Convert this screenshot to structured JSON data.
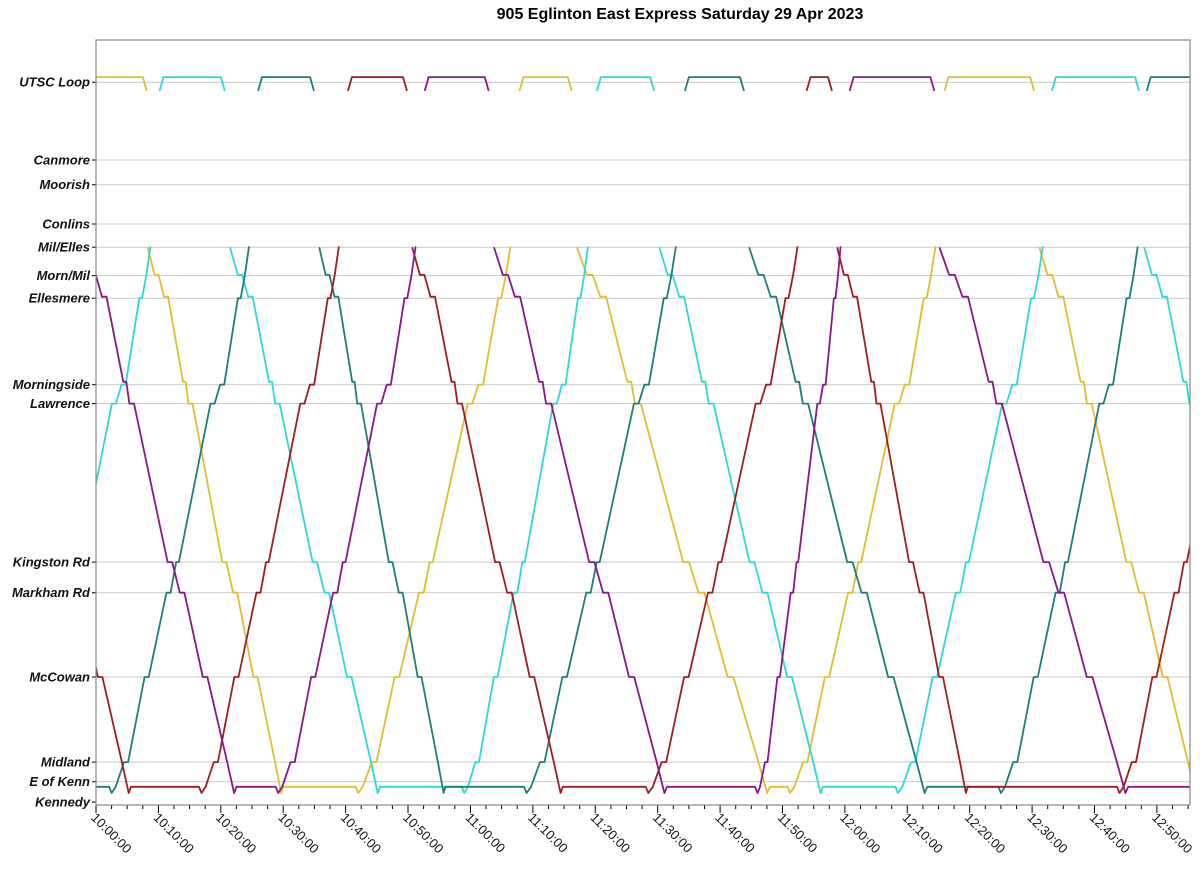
{
  "title": "905 Eglinton East Express Saturday 29 Apr 2023",
  "chart_data": {
    "type": "line",
    "title": "905 Eglinton East Express Saturday 29 Apr 2023",
    "xlabel": "",
    "ylabel": "",
    "legend": "none",
    "grid": "horizontal-station-lines",
    "x_axis": {
      "unit": "time",
      "start_min": 0,
      "end_min": 175.3,
      "major_tick_min": 10,
      "minor_tick_min": 2.5,
      "labels": [
        "10:00:00",
        "10:10:00",
        "10:20:00",
        "10:30:00",
        "10:40:00",
        "10:50:00",
        "11:00:00",
        "11:10:00",
        "11:20:00",
        "11:30:00",
        "11:40:00",
        "11:50:00",
        "12:00:00",
        "12:10:00",
        "12:20:00",
        "12:30:00",
        "12:40:00",
        "12:50:00"
      ]
    },
    "y_axis": {
      "unit": "route-position-0-to-100",
      "range": [
        0,
        105.2
      ],
      "stations": [
        {
          "label": "UTSC Loop",
          "pos": 99.4,
          "gridline": true
        },
        {
          "label": "Canmore",
          "pos": 88.7,
          "gridline": true
        },
        {
          "label": "Moorish",
          "pos": 85.3,
          "gridline": true
        },
        {
          "label": "Conlins",
          "pos": 79.9,
          "gridline": true
        },
        {
          "label": "Mil/Elles",
          "pos": 76.7,
          "gridline": true
        },
        {
          "label": "Morn/Mil",
          "pos": 72.8,
          "gridline": true
        },
        {
          "label": "Ellesmere",
          "pos": 69.7,
          "gridline": true
        },
        {
          "label": "Morningside",
          "pos": 57.8,
          "gridline": true
        },
        {
          "label": "Lawrence",
          "pos": 55.2,
          "gridline": true
        },
        {
          "label": "Kingston Rd",
          "pos": 33.4,
          "gridline": true
        },
        {
          "label": "Markham Rd",
          "pos": 29.2,
          "gridline": true
        },
        {
          "label": "McCowan",
          "pos": 17.6,
          "gridline": true
        },
        {
          "label": "Midland",
          "pos": 5.9,
          "gridline": true
        },
        {
          "label": "E of Kenn",
          "pos": 3.2,
          "gridline": true
        },
        {
          "label": "Kennedy",
          "pos": 0.4,
          "gridline": false
        }
      ]
    },
    "special_positions": {
      "loop_flat": 100.1,
      "loop_tick": 98.3,
      "terminal_flat": 2.5,
      "terminal_dip": 1.65
    },
    "profiles": {
      "descent": [
        [
          0,
          76.6
        ],
        [
          0.05,
          72.9
        ],
        [
          0.08,
          72.9
        ],
        [
          0.12,
          69.9
        ],
        [
          0.15,
          69.9
        ],
        [
          0.26,
          58.2
        ],
        [
          0.28,
          58.2
        ],
        [
          0.3,
          55.2
        ],
        [
          0.33,
          55.2
        ],
        [
          0.55,
          33.4
        ],
        [
          0.58,
          33.4
        ],
        [
          0.63,
          29.2
        ],
        [
          0.66,
          29.2
        ],
        [
          0.78,
          17.6
        ],
        [
          0.81,
          17.6
        ],
        [
          0.94,
          5.9
        ],
        [
          0.985,
          1.65
        ],
        [
          1,
          2.5
        ]
      ],
      "ascent": [
        [
          0,
          1.65
        ],
        [
          0.03,
          2.5
        ],
        [
          0.09,
          5.9
        ],
        [
          0.12,
          5.9
        ],
        [
          0.24,
          17.6
        ],
        [
          0.27,
          17.6
        ],
        [
          0.4,
          29.2
        ],
        [
          0.43,
          29.2
        ],
        [
          0.47,
          33.4
        ],
        [
          0.49,
          33.4
        ],
        [
          0.72,
          55.2
        ],
        [
          0.75,
          55.2
        ],
        [
          0.79,
          57.8
        ],
        [
          0.82,
          57.8
        ],
        [
          0.92,
          69.7
        ],
        [
          0.94,
          69.7
        ],
        [
          0.97,
          72.8
        ],
        [
          1,
          76.7
        ]
      ]
    },
    "series": [
      {
        "name": "gold",
        "color": "#E0BE33",
        "loops": [
          {
            "arr": -2,
            "dep": 7.5
          },
          {
            "arr": 67.9,
            "dep": 75.6
          },
          {
            "arr": 136,
            "dep": 149.7
          }
        ],
        "runs": [
          {
            "desc": [
              8.3,
              30
            ],
            "asc": [
              42,
              66.4
            ]
          },
          {
            "desc": [
              77.1,
              108
            ],
            "asc": [
              111.2,
              134.5
            ]
          },
          {
            "desc": [
              151.2,
              176.5
            ]
          }
        ]
      },
      {
        "name": "cyan",
        "color": "#2FD8D8",
        "loops": [
          {
            "arr": 10.2,
            "dep": 20
          },
          {
            "arr": 80.3,
            "dep": 88.8
          },
          {
            "arr": 153.2,
            "dep": 166.5
          }
        ],
        "runs": [
          {
            "asc": [
              -13.3,
              8.7
            ]
          },
          {
            "desc": [
              21.5,
              45.5
            ],
            "asc": [
              59,
              78.8
            ]
          },
          {
            "desc": [
              90.3,
              116.5
            ],
            "asc": [
              128.5,
              151.7
            ]
          },
          {
            "desc": [
              168,
              192
            ]
          }
        ]
      },
      {
        "name": "teal",
        "color": "#1D7D7D",
        "loops": [
          {
            "arr": 26,
            "dep": 34.3
          },
          {
            "arr": 94.4,
            "dep": 103.2
          },
          {
            "arr": 168.4,
            "dep": 177
          }
        ],
        "runs": [
          {
            "dwell": [
              -1,
              2
            ],
            "asc": [
              2.5,
              24.5
            ]
          },
          {
            "desc": [
              35.8,
              56
            ],
            "asc": [
              69,
              92.9
            ]
          },
          {
            "desc": [
              104.7,
              133.2
            ],
            "asc": [
              145,
              166.9
            ]
          }
        ]
      },
      {
        "name": "dark-red",
        "color": "#9C1F1F",
        "loops": [
          {
            "arr": 40.4,
            "dep": 49.2
          },
          {
            "arr": 113.9,
            "dep": 117.3
          }
        ],
        "runs": [
          {
            "desc": [
              -18.5,
              5.6
            ],
            "asc": [
              16.9,
              38.9
            ]
          },
          {
            "desc": [
              50.7,
              74.8
            ],
            "asc": [
              88.5,
              112.4
            ]
          },
          {
            "desc": [
              118.8,
              139.7
            ],
            "asc": [
              164,
              186
            ]
          }
        ]
      },
      {
        "name": "purple",
        "color": "#851985",
        "loops": [
          {
            "arr": 52.7,
            "dep": 62.3
          },
          {
            "arr": 120.8,
            "dep": 133.7
          }
        ],
        "runs": [
          {
            "desc": [
              -2,
              22.5
            ],
            "asc": [
              29.2,
              51.2
            ]
          },
          {
            "desc": [
              63.8,
              91.5
            ],
            "asc": [
              106,
              119.3
            ]
          },
          {
            "desc": [
              135.2,
              165.4
            ],
            "dwell": [
              165.7,
              176.5
            ]
          }
        ]
      }
    ]
  }
}
